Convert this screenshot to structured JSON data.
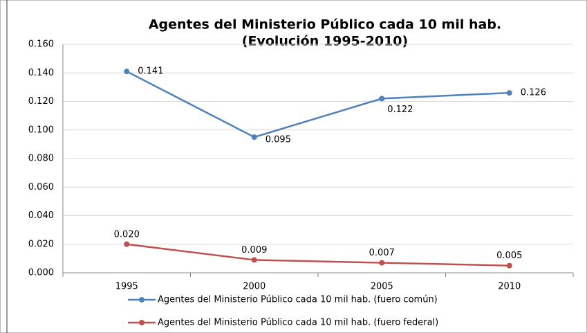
{
  "chart_data": {
    "type": "line",
    "title": "Agentes del Ministerio Público cada 10 mil hab.",
    "subtitle": "(Evolución 1995-2010)",
    "categories": [
      "1995",
      "2000",
      "2005",
      "2010"
    ],
    "series": [
      {
        "name": "Agentes del Ministerio Público cada 10 mil hab. (fuero común)",
        "color": "#4f81bd",
        "values": [
          0.141,
          0.095,
          0.122,
          0.126
        ]
      },
      {
        "name": "Agentes del Ministerio Público cada 10 mil hab. (fuero federal)",
        "color": "#c0504d",
        "values": [
          0.02,
          0.009,
          0.007,
          0.005
        ],
        "value_labels": [
          "0.020",
          "0.009",
          "0.007",
          "0.005"
        ]
      }
    ],
    "ylim": [
      0,
      0.16
    ],
    "yticks": [
      {
        "value": 0,
        "label": "0.000"
      },
      {
        "value": 0.02,
        "label": "0.020"
      },
      {
        "value": 0.04,
        "label": "0.040"
      },
      {
        "value": 0.06,
        "label": "0.060"
      },
      {
        "value": 0.08,
        "label": "0.080"
      },
      {
        "value": 0.1,
        "label": "0.100"
      },
      {
        "value": 0.12,
        "label": "0.120"
      },
      {
        "value": 0.14,
        "label": "0.140"
      },
      {
        "value": 0.16,
        "label": "0.160"
      }
    ],
    "grid": true,
    "legend": "bottom"
  }
}
